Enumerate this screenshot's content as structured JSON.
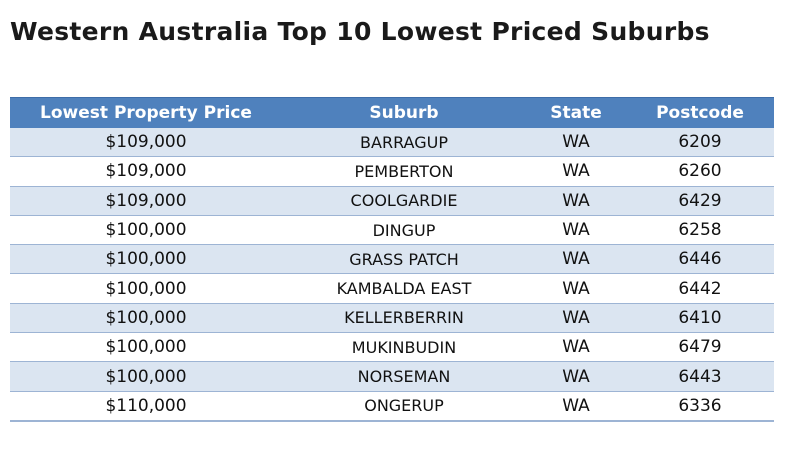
{
  "title": "Western Australia Top 10 Lowest Priced Suburbs",
  "table": {
    "headers": [
      "Lowest Property Price",
      "Suburb",
      "State",
      "Postcode"
    ],
    "rows": [
      {
        "price": "$109,000",
        "suburb": "BARRAGUP",
        "state": "WA",
        "postcode": "6209"
      },
      {
        "price": "$109,000",
        "suburb": "PEMBERTON",
        "state": "WA",
        "postcode": "6260"
      },
      {
        "price": "$109,000",
        "suburb": "COOLGARDIE",
        "state": "WA",
        "postcode": "6429"
      },
      {
        "price": "$100,000",
        "suburb": "DINGUP",
        "state": "WA",
        "postcode": "6258"
      },
      {
        "price": "$100,000",
        "suburb": "GRASS PATCH",
        "state": "WA",
        "postcode": "6446"
      },
      {
        "price": "$100,000",
        "suburb": "KAMBALDA EAST",
        "state": "WA",
        "postcode": "6442"
      },
      {
        "price": "$100,000",
        "suburb": "KELLERBERRIN",
        "state": "WA",
        "postcode": "6410"
      },
      {
        "price": "$100,000",
        "suburb": "MUKINBUDIN",
        "state": "WA",
        "postcode": "6479"
      },
      {
        "price": "$100,000",
        "suburb": "NORSEMAN",
        "state": "WA",
        "postcode": "6443"
      },
      {
        "price": "$110,000",
        "suburb": "ONGERUP",
        "state": "WA",
        "postcode": "6336"
      }
    ]
  },
  "colors": {
    "header_bg": "#4f81bd",
    "band_bg": "#dbe5f1",
    "rule": "#9db4d4"
  }
}
